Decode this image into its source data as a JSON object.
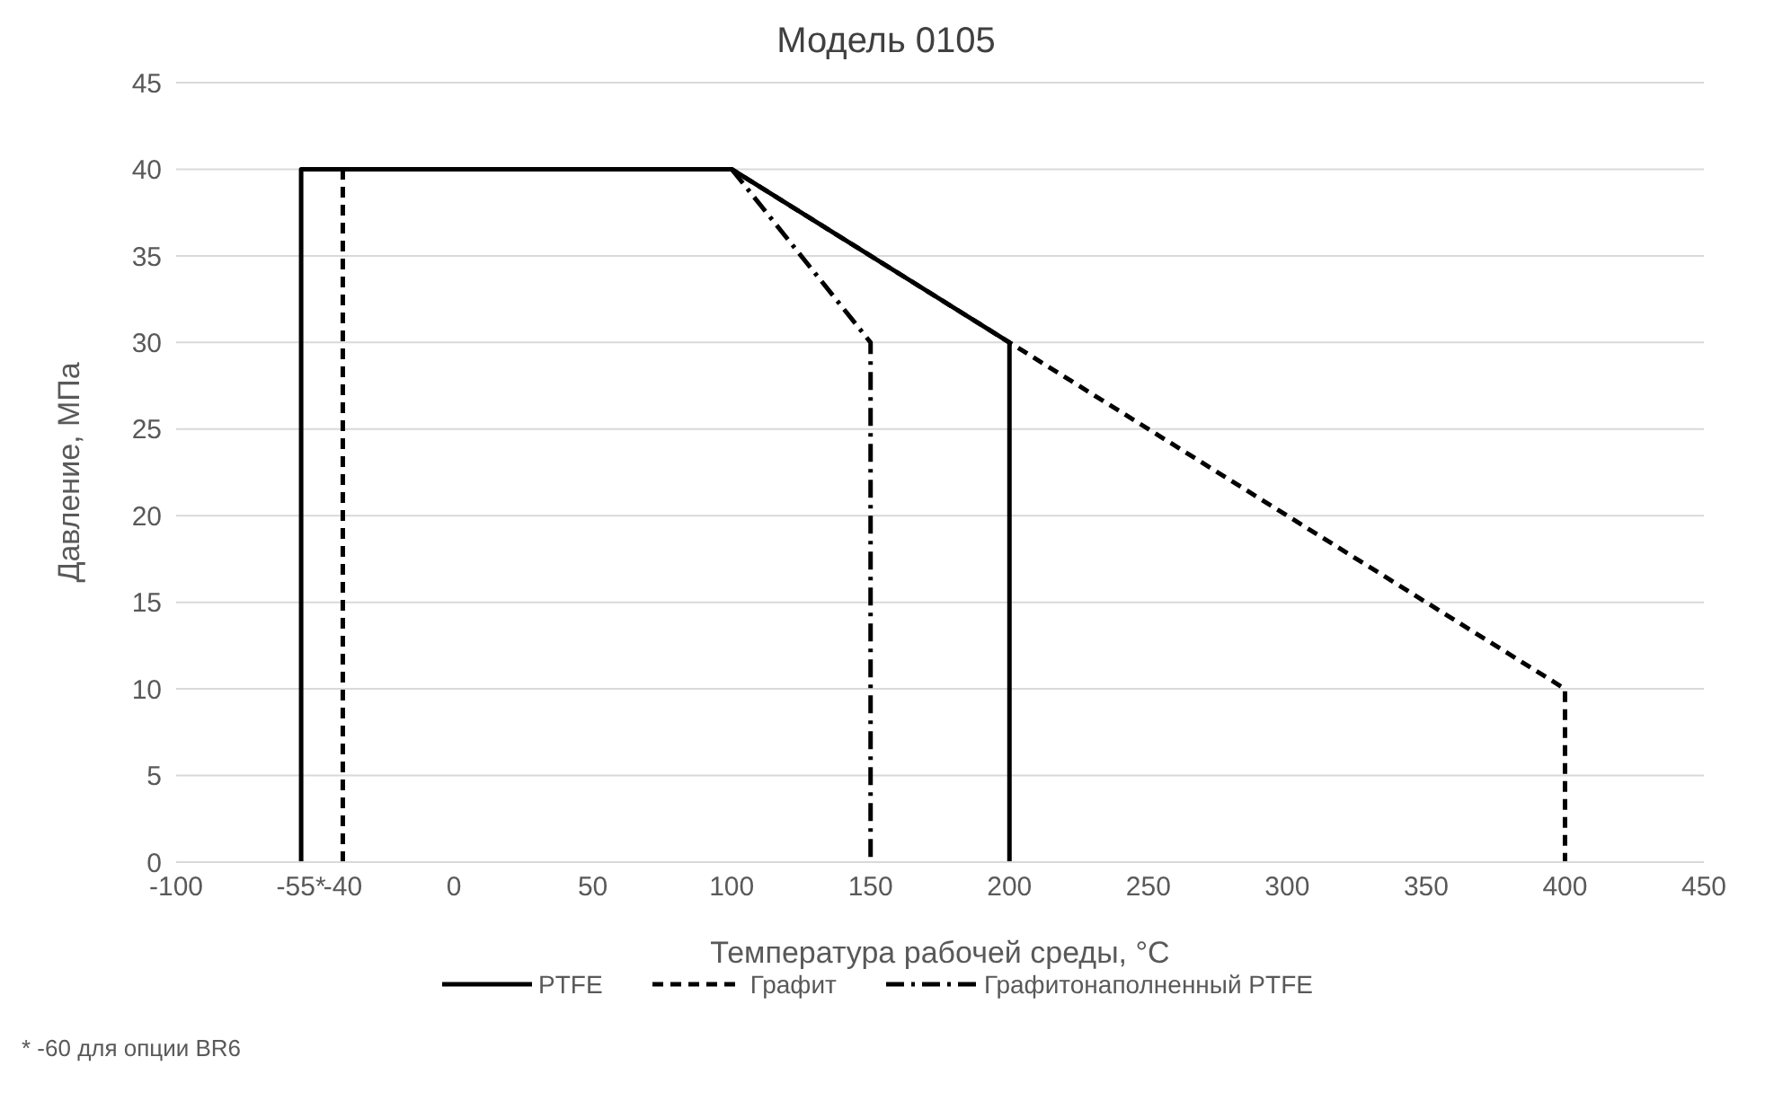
{
  "chart_data": {
    "type": "line",
    "title": "Модель 0105",
    "xlabel": "Температура рабочей среды, °C",
    "ylabel": "Давление, МПа",
    "xlim": [
      -100,
      450
    ],
    "xticks": [
      -100,
      {
        "value": -55,
        "label": "-55*"
      },
      -40,
      0,
      50,
      100,
      150,
      200,
      250,
      300,
      350,
      400,
      450
    ],
    "ylim": [
      0,
      45
    ],
    "yticks": [
      0,
      5,
      10,
      15,
      20,
      25,
      30,
      35,
      40,
      45
    ],
    "grid": "y",
    "legend": "bottom",
    "marker": "none",
    "series": [
      {
        "name": "PTFE",
        "color": "#000000",
        "line_style": "solid",
        "x": [
          -55,
          -55,
          100,
          200,
          200
        ],
        "values": [
          0,
          40,
          40,
          30,
          0
        ]
      },
      {
        "name": "Графит",
        "color": "#000000",
        "line_style": "dashed",
        "x": [
          -40,
          -40,
          100,
          400,
          400
        ],
        "values": [
          0,
          40,
          40,
          10,
          0
        ]
      },
      {
        "name": "Графитонаполненный PTFE",
        "color": "#000000",
        "line_style": "dashdot",
        "x": [
          100,
          150,
          150
        ],
        "values": [
          40,
          30,
          0
        ]
      }
    ],
    "annotations": [
      "* -60 для опции BR6"
    ]
  }
}
